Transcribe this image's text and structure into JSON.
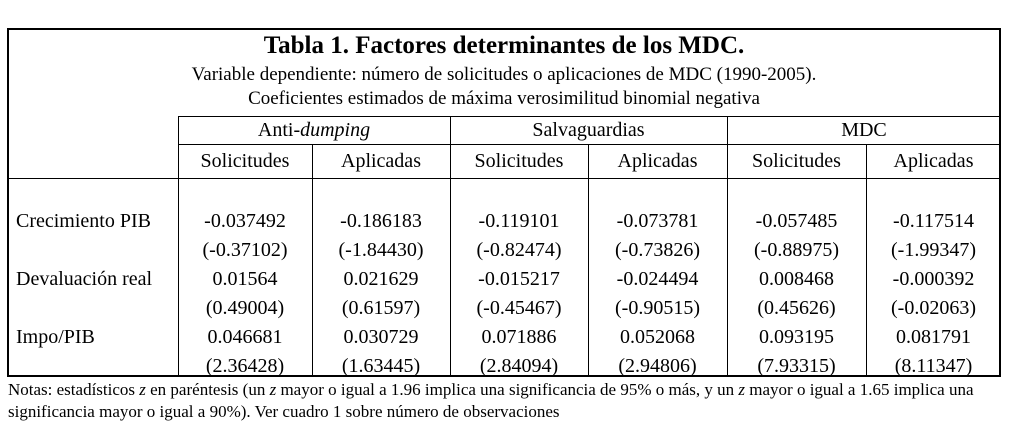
{
  "title": "Tabla 1. Factores determinantes de los MDC.",
  "subtitle1": "Variable dependiente: número de solicitudes o aplicaciones de MDC (1990-2005).",
  "subtitle2": "Coeficientes estimados de máxima verosimilitud binomial negativa",
  "groups": [
    {
      "pre": "Anti-",
      "em": "dumping"
    },
    {
      "pre": "Salvaguardias",
      "em": ""
    },
    {
      "pre": "MDC",
      "em": ""
    }
  ],
  "subheaders": [
    "Solicitudes",
    "Aplicadas",
    "Solicitudes",
    "Aplicadas",
    "Solicitudes",
    "Aplicadas"
  ],
  "rows": [
    {
      "label": "Crecimiento PIB",
      "coef": [
        "-0.037492",
        "-0.186183",
        "-0.119101",
        "-0.073781",
        "-0.057485",
        "-0.117514"
      ],
      "z": [
        "(-0.37102)",
        "(-1.84430)",
        "(-0.82474)",
        "(-0.73826)",
        "(-0.88975)",
        "(-1.99347)"
      ]
    },
    {
      "label": "Devaluación real",
      "coef": [
        "0.01564",
        "0.021629",
        "-0.015217",
        "-0.024494",
        "0.008468",
        "-0.000392"
      ],
      "z": [
        "(0.49004)",
        "(0.61597)",
        "(-0.45467)",
        "(-0.90515)",
        "(0.45626)",
        "(-0.02063)"
      ]
    },
    {
      "label": "Impo/PIB",
      "coef": [
        "0.046681",
        "0.030729",
        "0.071886",
        "0.052068",
        "0.093195",
        "0.081791"
      ],
      "z": [
        "(2.36428)",
        "(1.63445)",
        "(2.84094)",
        "(2.94806)",
        "(7.93315)",
        "(8.11347)"
      ]
    }
  ],
  "notes": {
    "p1": "Notas: estadísticos ",
    "z": "z",
    "p2": " en paréntesis (un ",
    "p3": " mayor o igual a 1.96 implica una significancia de 95% o más, y un ",
    "p4": " mayor o igual a 1.65 implica una significancia mayor o igual a 90%). Ver cuadro 1 sobre número de observaciones"
  }
}
